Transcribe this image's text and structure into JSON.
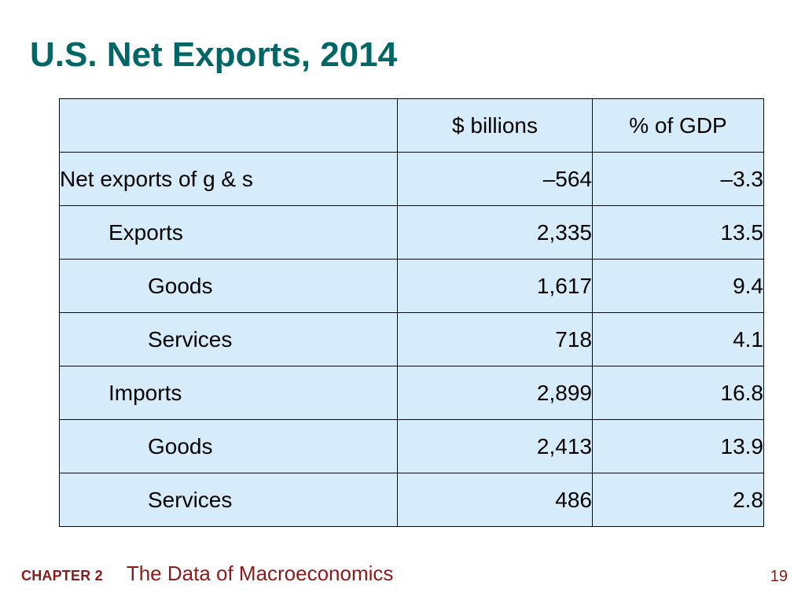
{
  "slide": {
    "title": "U.S. Net Exports, 2014"
  },
  "table": {
    "headers": [
      "",
      "$ billions",
      "% of GDP"
    ],
    "rows": [
      {
        "label": "Net exports of g & s",
        "billions": "–564",
        "pct_gdp": "–3.3"
      },
      {
        "label": "Exports",
        "billions": "2,335",
        "pct_gdp": "13.5"
      },
      {
        "label": "Goods",
        "billions": "1,617",
        "pct_gdp": "9.4"
      },
      {
        "label": "Services",
        "billions": "718",
        "pct_gdp": "4.1"
      },
      {
        "label": "Imports",
        "billions": "2,899",
        "pct_gdp": "16.8"
      },
      {
        "label": "Goods",
        "billions": "2,413",
        "pct_gdp": "13.9"
      },
      {
        "label": "Services",
        "billions": "486",
        "pct_gdp": "2.8"
      }
    ]
  },
  "footer": {
    "chapter": "CHAPTER 2",
    "subtitle": "The Data of Macroeconomics",
    "page_number": "19"
  },
  "colors": {
    "title": "#006666",
    "table_fill": "#d6ecfb",
    "footer": "#8b1a1a"
  }
}
